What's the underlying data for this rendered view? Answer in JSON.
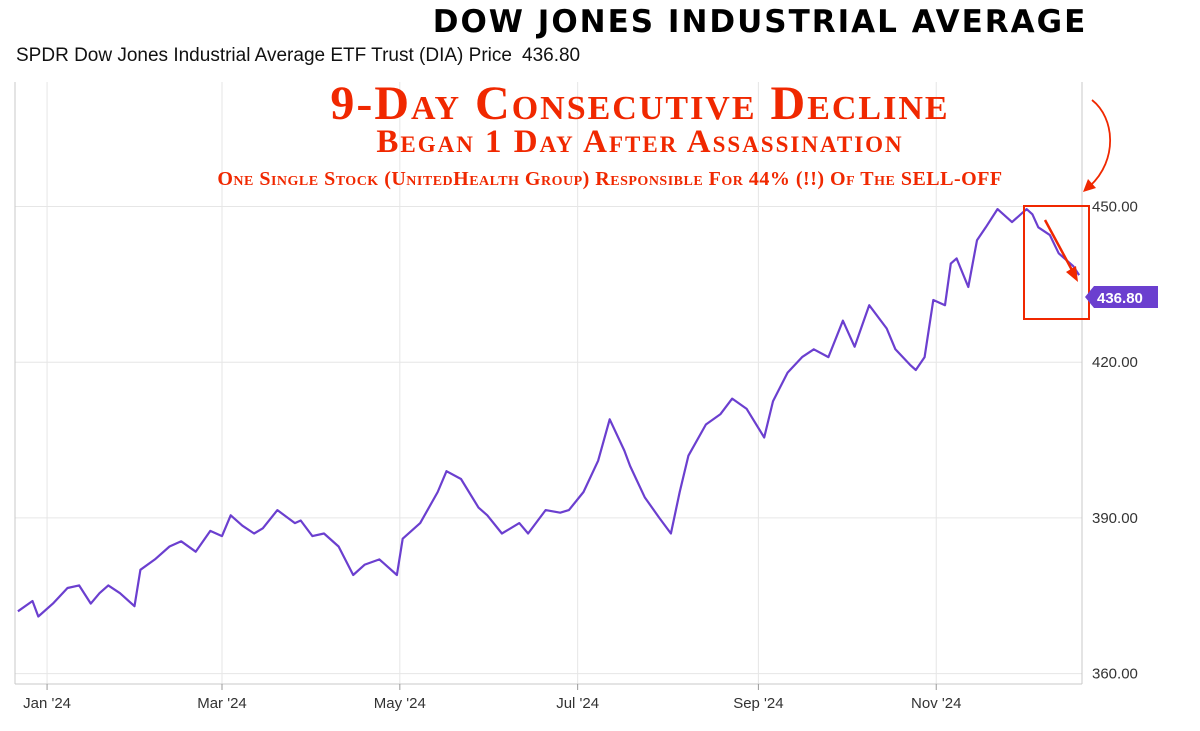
{
  "header": {
    "title": "DOW JONES INDUSTRIAL AVERAGE",
    "subtitle": "SPDR Dow Jones Industrial Average ETF Trust (DIA) Price",
    "price": "436.80"
  },
  "annotations": {
    "line1": "9-Day Consecutive Decline",
    "line2": "Began 1 Day After Assassination",
    "line3": "One Single Stock (UnitedHealth Group) Responsible For 44% (!!) Of The SELL-OFF"
  },
  "colors": {
    "series": "#6b3fcf",
    "annotation": "#f02800",
    "grid": "#e6e6e6"
  },
  "chart_data": {
    "type": "line",
    "title": "DOW JONES INDUSTRIAL AVERAGE",
    "series": [
      {
        "name": "SPDR Dow Jones Industrial Average ETF Trust (DIA) Price",
        "x": [
          "2023-12-22",
          "2023-12-27",
          "2023-12-29",
          "2024-01-03",
          "2024-01-08",
          "2024-01-12",
          "2024-01-16",
          "2024-01-19",
          "2024-01-22",
          "2024-01-26",
          "2024-01-31",
          "2024-02-02",
          "2024-02-07",
          "2024-02-12",
          "2024-02-16",
          "2024-02-21",
          "2024-02-26",
          "2024-03-01",
          "2024-03-04",
          "2024-03-08",
          "2024-03-12",
          "2024-03-15",
          "2024-03-20",
          "2024-03-26",
          "2024-03-28",
          "2024-04-01",
          "2024-04-05",
          "2024-04-10",
          "2024-04-15",
          "2024-04-19",
          "2024-04-24",
          "2024-04-30",
          "2024-05-02",
          "2024-05-08",
          "2024-05-14",
          "2024-05-17",
          "2024-05-22",
          "2024-05-28",
          "2024-05-31",
          "2024-06-05",
          "2024-06-11",
          "2024-06-14",
          "2024-06-20",
          "2024-06-25",
          "2024-06-28",
          "2024-07-03",
          "2024-07-08",
          "2024-07-12",
          "2024-07-17",
          "2024-07-19",
          "2024-07-24",
          "2024-07-29",
          "2024-08-02",
          "2024-08-05",
          "2024-08-08",
          "2024-08-14",
          "2024-08-19",
          "2024-08-23",
          "2024-08-28",
          "2024-09-03",
          "2024-09-06",
          "2024-09-11",
          "2024-09-16",
          "2024-09-20",
          "2024-09-25",
          "2024-09-30",
          "2024-10-04",
          "2024-10-09",
          "2024-10-15",
          "2024-10-18",
          "2024-10-23",
          "2024-10-25",
          "2024-10-28",
          "2024-10-31",
          "2024-11-04",
          "2024-11-06",
          "2024-11-08",
          "2024-11-12",
          "2024-11-15",
          "2024-11-18",
          "2024-11-22",
          "2024-11-27",
          "2024-12-02",
          "2024-12-04",
          "2024-12-06",
          "2024-12-10",
          "2024-12-13",
          "2024-12-18",
          "2024-12-20"
        ],
        "values": [
          372.0,
          374.0,
          371.0,
          373.5,
          376.5,
          377.0,
          373.5,
          375.5,
          377.0,
          375.5,
          373.0,
          380.0,
          382.0,
          384.5,
          385.5,
          383.5,
          387.5,
          386.5,
          390.5,
          388.5,
          387.0,
          388.0,
          391.5,
          389.0,
          389.5,
          386.5,
          387.0,
          384.5,
          379.0,
          381.0,
          382.0,
          379.0,
          386.0,
          389.0,
          395.0,
          399.0,
          397.5,
          392.0,
          390.5,
          387.0,
          389.0,
          387.0,
          391.5,
          391.0,
          391.5,
          395.0,
          401.0,
          409.0,
          403.0,
          400.0,
          394.0,
          390.0,
          387.0,
          395.0,
          402.0,
          408.0,
          410.0,
          413.0,
          411.0,
          405.5,
          412.5,
          418.0,
          421.0,
          422.5,
          421.0,
          428.0,
          423.0,
          431.0,
          426.5,
          422.5,
          419.5,
          418.5,
          421.0,
          432.0,
          431.0,
          439.0,
          440.0,
          434.5,
          443.5,
          446.0,
          449.5,
          447.0,
          449.5,
          448.5,
          446.0,
          444.5,
          441.0,
          438.5,
          436.8
        ]
      }
    ],
    "x_ticks": [
      "Jan '24",
      "Mar '24",
      "May '24",
      "Jul '24",
      "Sep '24",
      "Nov '24"
    ],
    "y_ticks": [
      "360.00",
      "390.00",
      "420.00",
      "450.00"
    ],
    "ylim": [
      358,
      474
    ],
    "last_value_label": "436.80",
    "grid": true
  }
}
